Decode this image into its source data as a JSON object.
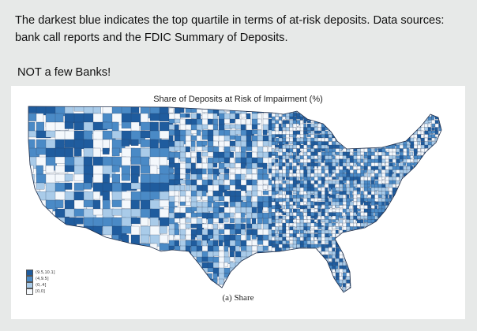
{
  "post": {
    "body": "The darkest blue indicates the top quartile in terms of at-risk deposits. Data sources: bank call reports and the FDIC Summary of Deposits.",
    "note": "NOT a few Banks!"
  },
  "figure": {
    "title": "Share of Deposits at Risk of Impairment (%)",
    "caption": "(a) Share",
    "legend": [
      {
        "label": "(9.5,10.1]",
        "color": "#1f5c9e"
      },
      {
        "label": "(4,9.5]",
        "color": "#4a8ac6"
      },
      {
        "label": "(0,.4]",
        "color": "#a9cbe9"
      },
      {
        "label": "[0,0]",
        "color": "#f4f8fc"
      }
    ]
  },
  "colors": {
    "background": "#e7e9e8",
    "figure_bg": "#ffffff",
    "county_border": "#2b3d5c"
  }
}
